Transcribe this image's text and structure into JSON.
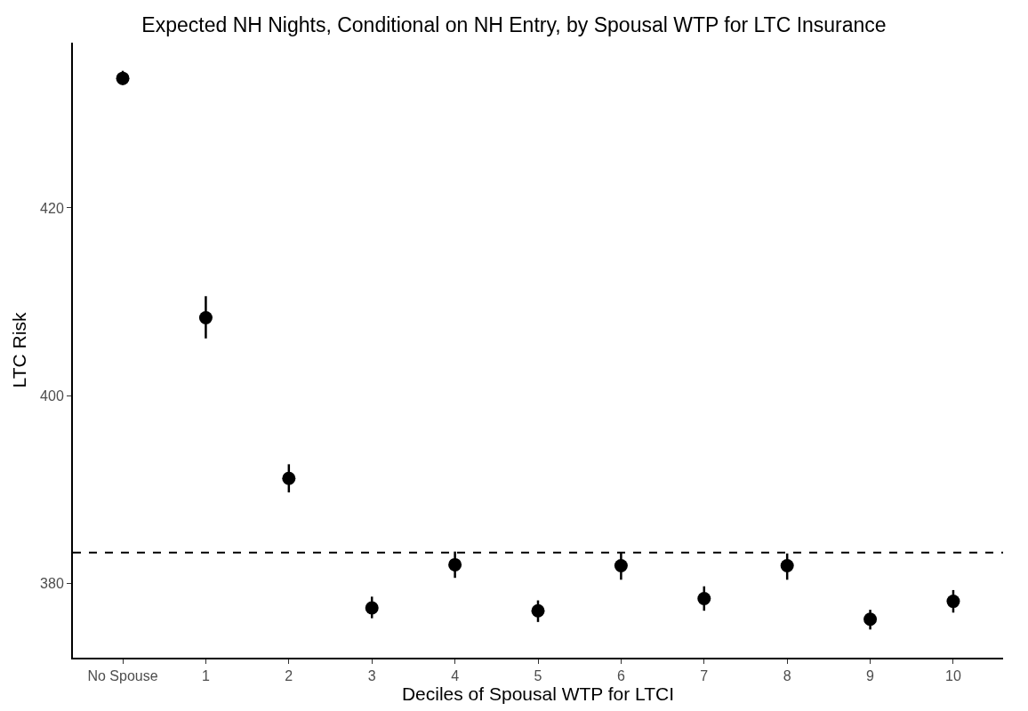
{
  "chart_data": {
    "type": "scatter",
    "title": "Expected NH Nights, Conditional on NH Entry, by Spousal WTP for LTC Insurance",
    "xlabel": "Deciles of Spousal WTP for LTCI",
    "ylabel": "LTC Risk",
    "categories": [
      "No Spouse",
      "1",
      "2",
      "3",
      "4",
      "5",
      "6",
      "7",
      "8",
      "9",
      "10"
    ],
    "series": [
      {
        "color": "#000000",
        "values": [
          433.8,
          408.3,
          391.2,
          377.4,
          382.0,
          377.1,
          381.9,
          378.4,
          381.9,
          376.2,
          378.1
        ],
        "errors": [
          [
            433.1,
            434.6
          ],
          [
            406.1,
            410.6
          ],
          [
            389.7,
            392.7
          ],
          [
            376.3,
            378.6
          ],
          [
            380.6,
            383.4
          ],
          [
            375.9,
            378.2
          ],
          [
            380.4,
            383.3
          ],
          [
            377.1,
            379.7
          ],
          [
            380.4,
            383.2
          ],
          [
            375.1,
            377.2
          ],
          [
            376.9,
            379.3
          ]
        ]
      }
    ],
    "ylim": [
      372.1,
      437.6
    ],
    "yticks": [
      380,
      400,
      420
    ],
    "grid": false,
    "marker": "circle",
    "ref_lines": [
      {
        "axis": "y",
        "value": 383.3,
        "line_style": "dashed",
        "color": "#000000"
      }
    ]
  }
}
